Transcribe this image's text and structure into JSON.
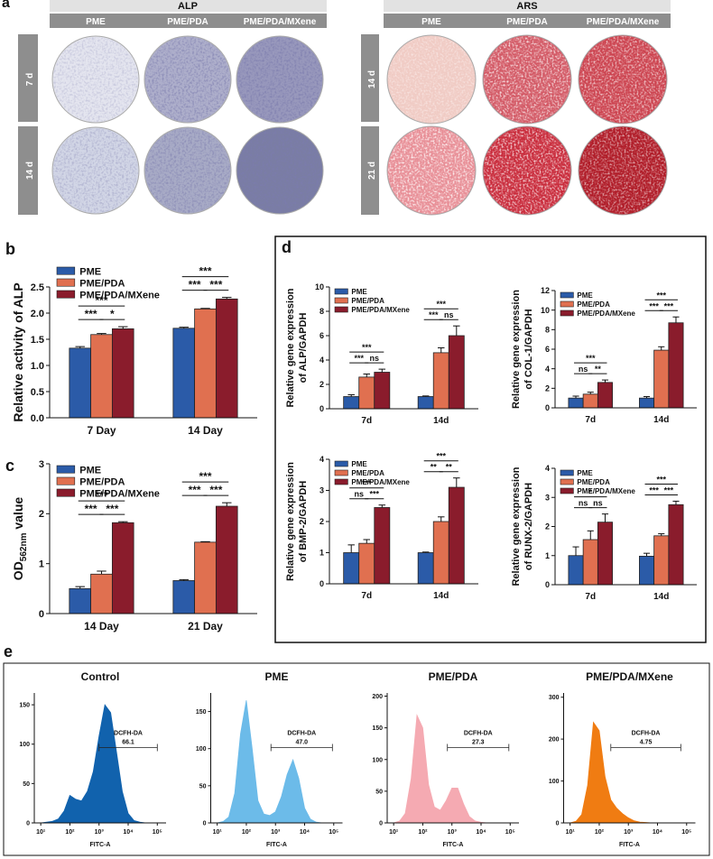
{
  "panel_letters": [
    "a",
    "b",
    "c",
    "d",
    "e"
  ],
  "panel_a": {
    "blocks": [
      {
        "title": "ALP",
        "columns": [
          "PME",
          "PME/PDA",
          "PME/PDA/MXene"
        ],
        "rows": [
          "7 d",
          "14 d"
        ]
      },
      {
        "title": "ARS",
        "columns": [
          "PME",
          "PME/PDA",
          "PME/PDA/MXene"
        ],
        "rows": [
          "14 d",
          "21 d"
        ]
      }
    ]
  },
  "chart_data": [
    {
      "type": "bar",
      "ylabel": "Relative activity of ALP",
      "categories": [
        "7 Day",
        "14 Day"
      ],
      "series": [
        {
          "name": "PME",
          "color": "#2b5ba8",
          "values": [
            1.33,
            1.71
          ],
          "errors": [
            0.03,
            0.02
          ]
        },
        {
          "name": "PME/PDA",
          "color": "#e07050",
          "values": [
            1.59,
            2.08
          ],
          "errors": [
            0.02,
            0.01
          ]
        },
        {
          "name": "PME/PDA/MXene",
          "color": "#8a1c2c",
          "values": [
            1.7,
            2.27
          ],
          "errors": [
            0.04,
            0.03
          ]
        }
      ],
      "ylim": [
        0,
        2.5
      ],
      "yticks": [
        {
          "value": 0,
          "label": "0.0"
        },
        0.5,
        {
          "value": 1,
          "label": "1.0"
        },
        1.5,
        {
          "value": 2,
          "label": "2.0"
        },
        2.5
      ],
      "legend": "upper left",
      "annotations": [
        {
          "text": "***",
          "category": 0,
          "pair": [
            0,
            1
          ]
        },
        {
          "text": "*",
          "category": 0,
          "pair": [
            1,
            2
          ]
        },
        {
          "text": "***",
          "category": 0,
          "pair": [
            0,
            2
          ]
        },
        {
          "text": "***",
          "category": 1,
          "pair": [
            0,
            1
          ]
        },
        {
          "text": "***",
          "category": 1,
          "pair": [
            1,
            2
          ]
        },
        {
          "text": "***",
          "category": 1,
          "pair": [
            0,
            2
          ]
        }
      ]
    },
    {
      "type": "bar",
      "ylabel": "OD",
      "ylabel_sub": "562nm",
      "ylabel_tail": " value",
      "categories": [
        "14 Day",
        "21 Day"
      ],
      "series": [
        {
          "name": "PME",
          "color": "#2b5ba8",
          "values": [
            0.5,
            0.66
          ],
          "errors": [
            0.04,
            0.02
          ]
        },
        {
          "name": "PME/PDA",
          "color": "#e07050",
          "values": [
            0.79,
            1.43
          ],
          "errors": [
            0.06,
            0.01
          ]
        },
        {
          "name": "PME/PDA/MXene",
          "color": "#8a1c2c",
          "values": [
            1.82,
            2.15
          ],
          "errors": [
            0.02,
            0.07
          ]
        }
      ],
      "ylim": [
        0,
        3
      ],
      "yticks": [
        0,
        1,
        2,
        3
      ],
      "legend": "upper left",
      "annotations": [
        {
          "text": "***",
          "category": 0,
          "pair": [
            0,
            1
          ]
        },
        {
          "text": "***",
          "category": 0,
          "pair": [
            1,
            2
          ]
        },
        {
          "text": "***",
          "category": 0,
          "pair": [
            0,
            2
          ]
        },
        {
          "text": "***",
          "category": 1,
          "pair": [
            0,
            1
          ]
        },
        {
          "text": "***",
          "category": 1,
          "pair": [
            1,
            2
          ]
        },
        {
          "text": "***",
          "category": 1,
          "pair": [
            0,
            2
          ]
        }
      ]
    },
    {
      "type": "bar",
      "ylabel": [
        "Relative gene expression",
        "of ALP/GAPDH"
      ],
      "categories": [
        "7d",
        "14d"
      ],
      "series": [
        {
          "name": "PME",
          "color": "#2b5ba8",
          "values": [
            1.0,
            1.0
          ],
          "errors": [
            0.15,
            0.05
          ]
        },
        {
          "name": "PME/PDA",
          "color": "#e07050",
          "values": [
            2.6,
            4.6
          ],
          "errors": [
            0.25,
            0.4
          ]
        },
        {
          "name": "PME/PDA/MXene",
          "color": "#8a1c2c",
          "values": [
            3.0,
            6.0
          ],
          "errors": [
            0.25,
            0.8
          ]
        }
      ],
      "ylim": [
        0,
        10
      ],
      "yticks": [
        0,
        2,
        4,
        6,
        8,
        10
      ],
      "legend": "upper left",
      "annotations": [
        {
          "text": "***",
          "category": 0,
          "pair": [
            0,
            1
          ]
        },
        {
          "text": "ns",
          "category": 0,
          "pair": [
            1,
            2
          ]
        },
        {
          "text": "***",
          "category": 0,
          "pair": [
            0,
            2
          ]
        },
        {
          "text": "***",
          "category": 1,
          "pair": [
            0,
            1
          ]
        },
        {
          "text": "ns",
          "category": 1,
          "pair": [
            1,
            2
          ]
        },
        {
          "text": "***",
          "category": 1,
          "pair": [
            0,
            2
          ]
        }
      ]
    },
    {
      "type": "bar",
      "ylabel": [
        "Relative gene expression",
        "of COL-1/GAPDH"
      ],
      "categories": [
        "7d",
        "14d"
      ],
      "series": [
        {
          "name": "PME",
          "color": "#2b5ba8",
          "values": [
            1.0,
            1.0
          ],
          "errors": [
            0.2,
            0.15
          ]
        },
        {
          "name": "PME/PDA",
          "color": "#e07050",
          "values": [
            1.4,
            5.9
          ],
          "errors": [
            0.2,
            0.35
          ]
        },
        {
          "name": "PME/PDA/MXene",
          "color": "#8a1c2c",
          "values": [
            2.6,
            8.7
          ],
          "errors": [
            0.25,
            0.6
          ]
        }
      ],
      "ylim": [
        0,
        12
      ],
      "yticks": [
        0,
        2,
        4,
        6,
        8,
        10,
        12
      ],
      "legend": "upper left",
      "annotations": [
        {
          "text": "ns",
          "category": 0,
          "pair": [
            0,
            1
          ]
        },
        {
          "text": "**",
          "category": 0,
          "pair": [
            1,
            2
          ]
        },
        {
          "text": "***",
          "category": 0,
          "pair": [
            0,
            2
          ]
        },
        {
          "text": "***",
          "category": 1,
          "pair": [
            0,
            1
          ]
        },
        {
          "text": "***",
          "category": 1,
          "pair": [
            1,
            2
          ]
        },
        {
          "text": "***",
          "category": 1,
          "pair": [
            0,
            2
          ]
        }
      ]
    },
    {
      "type": "bar",
      "ylabel": [
        "Relative gene expression",
        "of BMP-2/GAPDH"
      ],
      "categories": [
        "7d",
        "14d"
      ],
      "series": [
        {
          "name": "PME",
          "color": "#2b5ba8",
          "values": [
            1.0,
            1.0
          ],
          "errors": [
            0.25,
            0.02
          ]
        },
        {
          "name": "PME/PDA",
          "color": "#e07050",
          "values": [
            1.3,
            2.0
          ],
          "errors": [
            0.12,
            0.15
          ]
        },
        {
          "name": "PME/PDA/MXene",
          "color": "#8a1c2c",
          "values": [
            2.45,
            3.1
          ],
          "errors": [
            0.08,
            0.3
          ]
        }
      ],
      "ylim": [
        0,
        4
      ],
      "yticks": [
        0,
        1,
        2,
        3,
        4
      ],
      "legend": "upper left",
      "annotations": [
        {
          "text": "ns",
          "category": 0,
          "pair": [
            0,
            1
          ]
        },
        {
          "text": "***",
          "category": 0,
          "pair": [
            1,
            2
          ]
        },
        {
          "text": "***",
          "category": 0,
          "pair": [
            0,
            2
          ]
        },
        {
          "text": "**",
          "category": 1,
          "pair": [
            0,
            1
          ]
        },
        {
          "text": "**",
          "category": 1,
          "pair": [
            1,
            2
          ]
        },
        {
          "text": "***",
          "category": 1,
          "pair": [
            0,
            2
          ]
        }
      ]
    },
    {
      "type": "bar",
      "ylabel": [
        "Relative gene expression",
        "of RUNX-2/GAPDH"
      ],
      "categories": [
        "7d",
        "14d"
      ],
      "series": [
        {
          "name": "PME",
          "color": "#2b5ba8",
          "values": [
            1.0,
            0.98
          ],
          "errors": [
            0.3,
            0.1
          ]
        },
        {
          "name": "PME/PDA",
          "color": "#e07050",
          "values": [
            1.55,
            1.68
          ],
          "errors": [
            0.3,
            0.07
          ]
        },
        {
          "name": "PME/PDA/MXene",
          "color": "#8a1c2c",
          "values": [
            2.15,
            2.75
          ],
          "errors": [
            0.28,
            0.12
          ]
        }
      ],
      "ylim": [
        0,
        4
      ],
      "yticks": [
        0,
        1,
        2,
        3,
        4
      ],
      "legend": "upper left",
      "annotations": [
        {
          "text": "ns",
          "category": 0,
          "pair": [
            0,
            1
          ]
        },
        {
          "text": "ns",
          "category": 0,
          "pair": [
            1,
            2
          ]
        },
        {
          "text": "*",
          "category": 0,
          "pair": [
            0,
            2
          ]
        },
        {
          "text": "***",
          "category": 1,
          "pair": [
            0,
            1
          ]
        },
        {
          "text": "***",
          "category": 1,
          "pair": [
            1,
            2
          ]
        },
        {
          "text": "***",
          "category": 1,
          "pair": [
            0,
            2
          ]
        }
      ]
    },
    {
      "type": "area",
      "title": "Control",
      "color": "#1162ad",
      "log_x": true,
      "x": [
        10,
        16,
        25,
        40,
        63,
        100,
        158,
        251,
        398,
        631,
        1000,
        1585,
        2512,
        3981,
        6310,
        10000,
        15849,
        25119,
        39811,
        63096,
        100000
      ],
      "values": [
        0,
        1,
        2,
        5,
        15,
        35,
        30,
        28,
        40,
        65,
        110,
        150,
        140,
        90,
        40,
        12,
        3,
        1,
        0,
        0,
        0
      ],
      "xlim": [
        6,
        200000
      ],
      "ylim": [
        0,
        165
      ],
      "yticks": [
        0,
        50,
        100,
        150
      ],
      "xticks": [
        {
          "value": 10,
          "label": "10¹"
        },
        {
          "value": 100,
          "label": "10²"
        },
        {
          "value": 1000,
          "label": "10³"
        },
        {
          "value": 10000,
          "label": "10⁴"
        },
        {
          "value": 100000,
          "label": "10⁵"
        }
      ],
      "xlabel": "FITC-A",
      "gate": {
        "name": "DCFH-DA",
        "range": [
          1000,
          100000
        ],
        "value": 66.1
      }
    },
    {
      "type": "area",
      "title": "PME",
      "color": "#6cbbe9",
      "log_x": true,
      "x": [
        10,
        16,
        25,
        40,
        63,
        100,
        158,
        251,
        398,
        631,
        1000,
        1585,
        2512,
        3981,
        6310,
        10000,
        15849,
        25119,
        39811,
        63096,
        100000
      ],
      "values": [
        0,
        2,
        8,
        40,
        120,
        165,
        100,
        30,
        12,
        10,
        15,
        35,
        65,
        85,
        60,
        20,
        5,
        1,
        0,
        0,
        0
      ],
      "xlim": [
        6,
        200000
      ],
      "ylim": [
        0,
        175
      ],
      "yticks": [
        0,
        50,
        100,
        150
      ],
      "xticks": [
        {
          "value": 10,
          "label": "10¹"
        },
        {
          "value": 100,
          "label": "10²"
        },
        {
          "value": 1000,
          "label": "10³"
        },
        {
          "value": 10000,
          "label": "10⁴"
        },
        {
          "value": 100000,
          "label": "10⁵"
        }
      ],
      "xlabel": "FITC-A",
      "gate": {
        "name": "DCFH-DA",
        "range": [
          700,
          90000
        ],
        "value": 47,
        "value_label": "47.0"
      }
    },
    {
      "type": "area",
      "title": "PME/PDA",
      "color": "#f5aab2",
      "log_x": true,
      "x": [
        10,
        16,
        25,
        40,
        63,
        100,
        158,
        251,
        398,
        631,
        1000,
        1585,
        2512,
        3981,
        6310,
        10000,
        15849,
        25119,
        39811,
        63096,
        100000
      ],
      "values": [
        0,
        3,
        15,
        70,
        170,
        150,
        60,
        25,
        20,
        35,
        55,
        55,
        30,
        10,
        3,
        1,
        0,
        0,
        0,
        0,
        0
      ],
      "xlim": [
        6,
        200000
      ],
      "ylim": [
        0,
        205
      ],
      "yticks": [
        0,
        50,
        100,
        150,
        200
      ],
      "xticks": [
        {
          "value": 10,
          "label": "10¹"
        },
        {
          "value": 100,
          "label": "10²"
        },
        {
          "value": 1000,
          "label": "10³"
        },
        {
          "value": 10000,
          "label": "10⁴"
        },
        {
          "value": 100000,
          "label": "10⁵"
        }
      ],
      "xlabel": "FITC-A",
      "gate": {
        "name": "DCFH-DA",
        "range": [
          700,
          90000
        ],
        "value": 27.3
      }
    },
    {
      "type": "area",
      "title": "PME/PDA/MXene",
      "color": "#f07c12",
      "log_x": true,
      "x": [
        10,
        16,
        25,
        40,
        63,
        100,
        158,
        251,
        398,
        631,
        1000,
        1585,
        2512,
        3981,
        6310,
        10000,
        15849,
        25119,
        39811,
        63096,
        100000
      ],
      "values": [
        0,
        4,
        20,
        90,
        240,
        220,
        110,
        55,
        35,
        22,
        12,
        5,
        2,
        1,
        0,
        0,
        0,
        0,
        0,
        0,
        0
      ],
      "xlim": [
        6,
        200000
      ],
      "ylim": [
        0,
        310
      ],
      "yticks": [
        0,
        100,
        200,
        300
      ],
      "xticks": [
        {
          "value": 10,
          "label": "10¹"
        },
        {
          "value": 100,
          "label": "10²"
        },
        {
          "value": 1000,
          "label": "10³"
        },
        {
          "value": 10000,
          "label": "10⁴"
        },
        {
          "value": 100000,
          "label": "10⁵"
        }
      ],
      "xlabel": "FITC-A",
      "gate": {
        "name": "DCFH-DA",
        "range": [
          250,
          63000
        ],
        "value": 4.75
      }
    }
  ]
}
